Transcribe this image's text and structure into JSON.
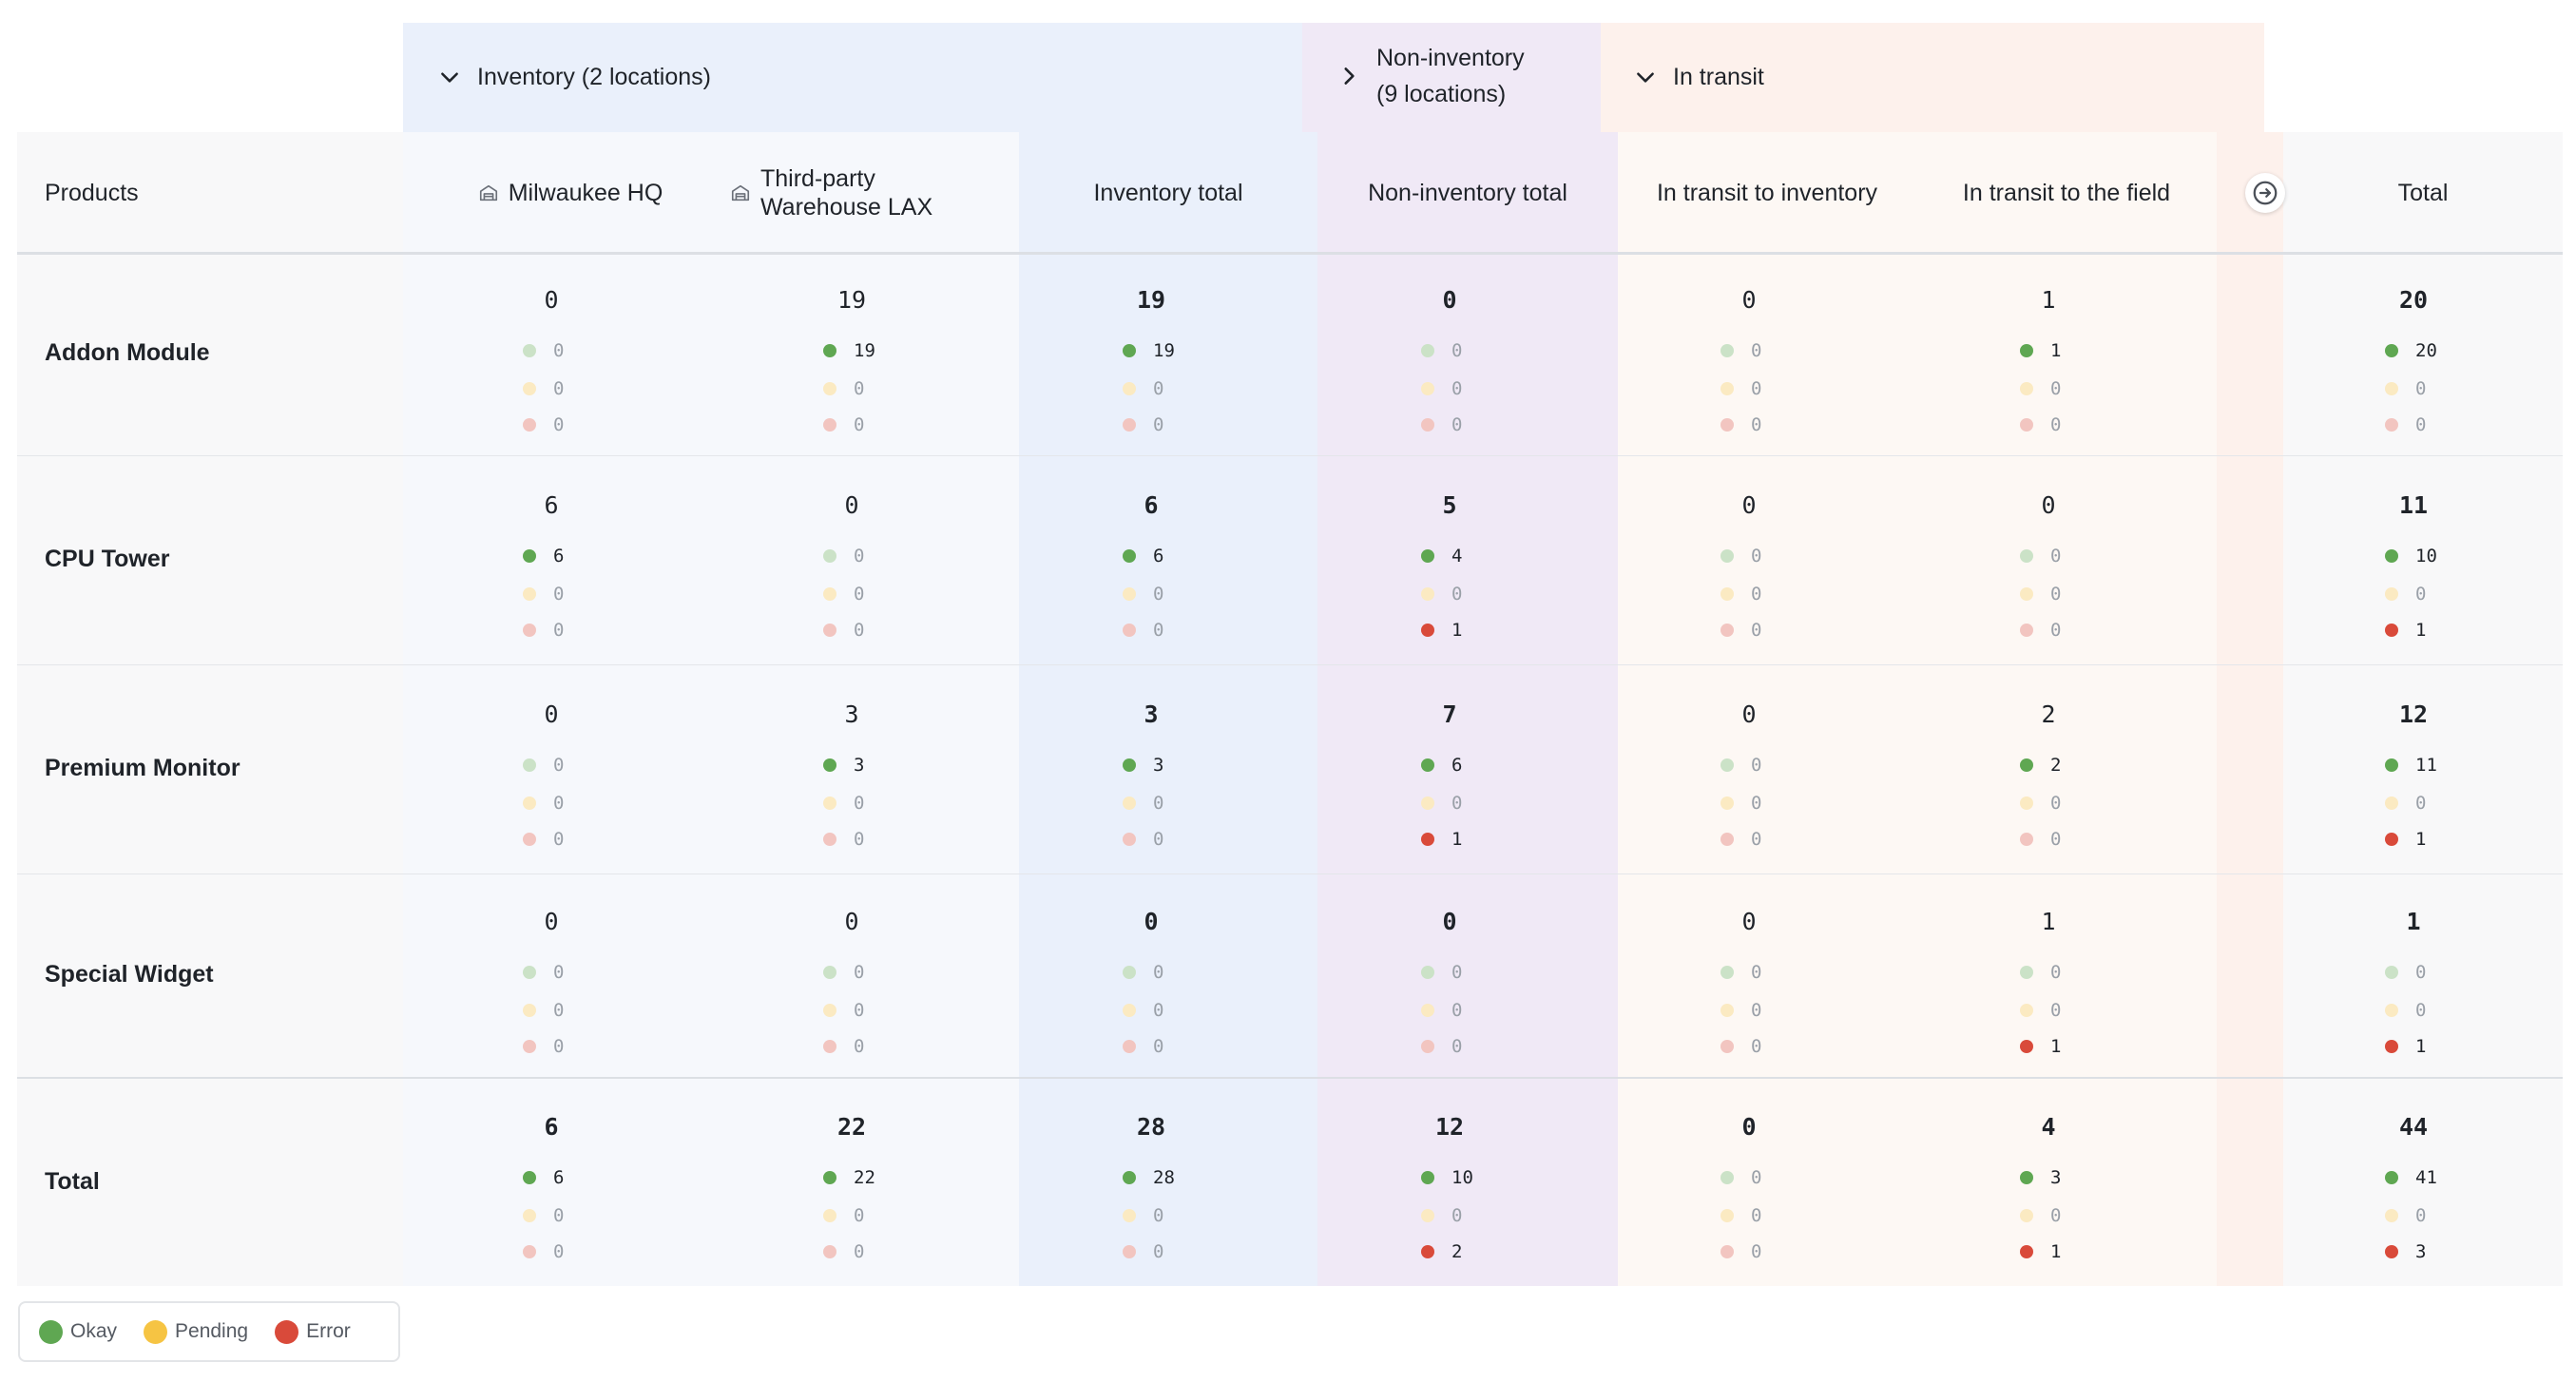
{
  "groups": {
    "inventory": {
      "label": "Inventory (2 locations)",
      "icon": "chevron-down-icon"
    },
    "non_inventory": {
      "label_line1": "Non-inventory",
      "label_line2": "(9 locations)",
      "icon": "chevron-right-icon"
    },
    "in_transit": {
      "label": "In transit",
      "icon": "chevron-down-icon"
    }
  },
  "headers": {
    "products": "Products",
    "milwaukee": "Milwaukee HQ",
    "warehouse_line1": "Third-party",
    "warehouse_line2": "Warehouse LAX",
    "inventory_total": "Inventory total",
    "non_inventory_total": "Non-inventory total",
    "transit_inventory": "In transit to inventory",
    "transit_field": "In transit to the field",
    "total": "Total",
    "expand_icon": "arrow-right-circle-icon"
  },
  "rows": [
    {
      "label": "Addon Module",
      "cells": {
        "milwaukee": {
          "total": "0",
          "okay": "0",
          "pending": "0",
          "error": "0"
        },
        "warehouse": {
          "total": "19",
          "okay": "19",
          "pending": "0",
          "error": "0"
        },
        "inventory_total": {
          "total": "19",
          "okay": "19",
          "pending": "0",
          "error": "0"
        },
        "non_inventory_total": {
          "total": "0",
          "okay": "0",
          "pending": "0",
          "error": "0"
        },
        "transit_inventory": {
          "total": "0",
          "okay": "0",
          "pending": "0",
          "error": "0"
        },
        "transit_field": {
          "total": "1",
          "okay": "1",
          "pending": "0",
          "error": "0"
        },
        "total": {
          "total": "20",
          "okay": "20",
          "pending": "0",
          "error": "0"
        }
      }
    },
    {
      "label": "CPU Tower",
      "cells": {
        "milwaukee": {
          "total": "6",
          "okay": "6",
          "pending": "0",
          "error": "0"
        },
        "warehouse": {
          "total": "0",
          "okay": "0",
          "pending": "0",
          "error": "0"
        },
        "inventory_total": {
          "total": "6",
          "okay": "6",
          "pending": "0",
          "error": "0"
        },
        "non_inventory_total": {
          "total": "5",
          "okay": "4",
          "pending": "0",
          "error": "1"
        },
        "transit_inventory": {
          "total": "0",
          "okay": "0",
          "pending": "0",
          "error": "0"
        },
        "transit_field": {
          "total": "0",
          "okay": "0",
          "pending": "0",
          "error": "0"
        },
        "total": {
          "total": "11",
          "okay": "10",
          "pending": "0",
          "error": "1"
        }
      }
    },
    {
      "label": "Premium Monitor",
      "cells": {
        "milwaukee": {
          "total": "0",
          "okay": "0",
          "pending": "0",
          "error": "0"
        },
        "warehouse": {
          "total": "3",
          "okay": "3",
          "pending": "0",
          "error": "0"
        },
        "inventory_total": {
          "total": "3",
          "okay": "3",
          "pending": "0",
          "error": "0"
        },
        "non_inventory_total": {
          "total": "7",
          "okay": "6",
          "pending": "0",
          "error": "1"
        },
        "transit_inventory": {
          "total": "0",
          "okay": "0",
          "pending": "0",
          "error": "0"
        },
        "transit_field": {
          "total": "2",
          "okay": "2",
          "pending": "0",
          "error": "0"
        },
        "total": {
          "total": "12",
          "okay": "11",
          "pending": "0",
          "error": "1"
        }
      }
    },
    {
      "label": "Special Widget",
      "cells": {
        "milwaukee": {
          "total": "0",
          "okay": "0",
          "pending": "0",
          "error": "0"
        },
        "warehouse": {
          "total": "0",
          "okay": "0",
          "pending": "0",
          "error": "0"
        },
        "inventory_total": {
          "total": "0",
          "okay": "0",
          "pending": "0",
          "error": "0"
        },
        "non_inventory_total": {
          "total": "0",
          "okay": "0",
          "pending": "0",
          "error": "0"
        },
        "transit_inventory": {
          "total": "0",
          "okay": "0",
          "pending": "0",
          "error": "0"
        },
        "transit_field": {
          "total": "1",
          "okay": "0",
          "pending": "0",
          "error": "1"
        },
        "total": {
          "total": "1",
          "okay": "0",
          "pending": "0",
          "error": "1"
        }
      }
    },
    {
      "label": "Total",
      "cells": {
        "milwaukee": {
          "total": "6",
          "okay": "6",
          "pending": "0",
          "error": "0"
        },
        "warehouse": {
          "total": "22",
          "okay": "22",
          "pending": "0",
          "error": "0"
        },
        "inventory_total": {
          "total": "28",
          "okay": "28",
          "pending": "0",
          "error": "0"
        },
        "non_inventory_total": {
          "total": "12",
          "okay": "10",
          "pending": "0",
          "error": "2"
        },
        "transit_inventory": {
          "total": "0",
          "okay": "0",
          "pending": "0",
          "error": "0"
        },
        "transit_field": {
          "total": "4",
          "okay": "3",
          "pending": "0",
          "error": "1"
        },
        "total": {
          "total": "44",
          "okay": "41",
          "pending": "0",
          "error": "3"
        }
      }
    }
  ],
  "legend": {
    "okay": "Okay",
    "pending": "Pending",
    "error": "Error"
  },
  "colors": {
    "okay": "#5fa752",
    "pending": "#f6cf6b",
    "error": "#d94a3a",
    "inventory_group": "#eaf0fb",
    "non_inventory_group": "#f0e9f6",
    "transit_group": "#fdf1ec"
  }
}
